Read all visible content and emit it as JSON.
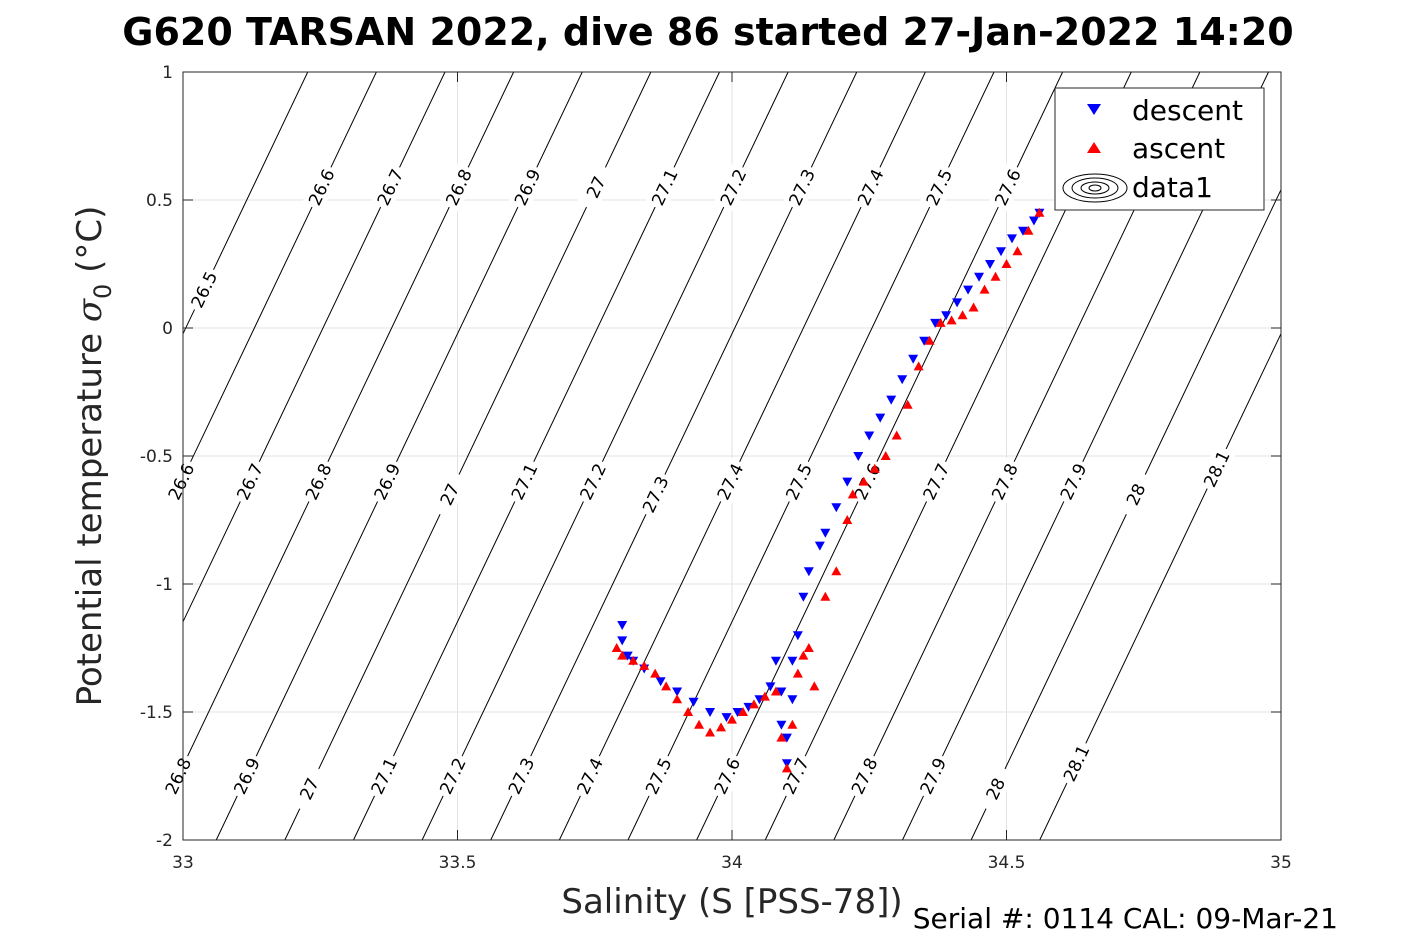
{
  "chart_data": {
    "type": "scatter",
    "title": "G620 TARSAN 2022, dive 86 started 27-Jan-2022 14:20",
    "xlabel": "Salinity (S [PSS-78])",
    "ylabel_prefix": "Potential temperature ",
    "ylabel_sigma": "σ",
    "ylabel_sub": "0",
    "ylabel_suffix": " (°C)",
    "footer": "Serial #: 0114  CAL: 09-Mar-21",
    "xlim": [
      33,
      35
    ],
    "ylim": [
      -2,
      1
    ],
    "xticks": [
      33,
      33.5,
      34,
      34.5,
      35
    ],
    "xtick_labels": [
      "33",
      "33.5",
      "34",
      "34.5",
      "35"
    ],
    "yticks": [
      -2,
      -1.5,
      -1,
      -0.5,
      0,
      0.5,
      1
    ],
    "ytick_labels": [
      "-2",
      "-1.5",
      "-1",
      "-0.5",
      "0",
      "0.5",
      "1"
    ],
    "grid": true,
    "legend_position": "top-right",
    "legend": [
      {
        "label": "descent",
        "color": "#0000ff",
        "marker": "triangle-down"
      },
      {
        "label": "ascent",
        "color": "#ff0000",
        "marker": "triangle-up"
      },
      {
        "label": "data1",
        "color": "#000000",
        "marker": "contour"
      }
    ],
    "contours": {
      "levels": [
        26.5,
        26.6,
        26.7,
        26.8,
        26.9,
        27,
        27.1,
        27.2,
        27.3,
        27.4,
        27.5,
        27.6,
        27.7,
        27.8,
        27.9,
        28,
        28.1
      ],
      "level_labels": [
        "26.5",
        "26.6",
        "26.7",
        "26.8",
        "26.9",
        "27",
        "27.1",
        "27.2",
        "27.3",
        "27.4",
        "27.5",
        "27.6",
        "27.7",
        "27.8",
        "27.9",
        "28",
        "28.1"
      ],
      "slope_dT_dS": 4.5,
      "salinity_at_zero": [
        33.005,
        33.13,
        33.255,
        33.38,
        33.505,
        33.63,
        33.755,
        33.88,
        34.005,
        34.13,
        34.255,
        34.38,
        34.505,
        34.63,
        34.755,
        34.88,
        35.005
      ],
      "labels": [
        {
          "level": "26.5",
          "T": 0.15
        },
        {
          "level": "26.6",
          "T": 0.55
        },
        {
          "level": "26.7",
          "T": 0.55
        },
        {
          "level": "26.8",
          "T": 0.55
        },
        {
          "level": "26.9",
          "T": 0.55
        },
        {
          "level": "27",
          "T": 0.55
        },
        {
          "level": "27.1",
          "T": 0.55
        },
        {
          "level": "27.2",
          "T": 0.55
        },
        {
          "level": "27.3",
          "T": 0.55
        },
        {
          "level": "27.4",
          "T": 0.55
        },
        {
          "level": "27.5",
          "T": 0.55
        },
        {
          "level": "27.6",
          "T": 0.55
        },
        {
          "level": "27.7",
          "T": 0.55
        },
        {
          "level": "26.6",
          "T": -0.6
        },
        {
          "level": "26.7",
          "T": -0.6
        },
        {
          "level": "26.8",
          "T": -0.6
        },
        {
          "level": "26.9",
          "T": -0.6
        },
        {
          "level": "27",
          "T": -0.65
        },
        {
          "level": "27.1",
          "T": -0.6
        },
        {
          "level": "27.2",
          "T": -0.6
        },
        {
          "level": "27.3",
          "T": -0.65
        },
        {
          "level": "27.4",
          "T": -0.6
        },
        {
          "level": "27.5",
          "T": -0.6
        },
        {
          "level": "27.6",
          "T": -0.6
        },
        {
          "level": "27.7",
          "T": -0.6
        },
        {
          "level": "27.8",
          "T": -0.6
        },
        {
          "level": "27.9",
          "T": -0.6
        },
        {
          "level": "28",
          "T": -0.65
        },
        {
          "level": "28.1",
          "T": -0.55
        },
        {
          "level": "26.6",
          "T": -1.75
        },
        {
          "level": "26.7",
          "T": -1.75
        },
        {
          "level": "26.8",
          "T": -1.75
        },
        {
          "level": "26.9",
          "T": -1.75
        },
        {
          "level": "27",
          "T": -1.8
        },
        {
          "level": "27.1",
          "T": -1.75
        },
        {
          "level": "27.2",
          "T": -1.75
        },
        {
          "level": "27.3",
          "T": -1.75
        },
        {
          "level": "27.4",
          "T": -1.75
        },
        {
          "level": "27.5",
          "T": -1.75
        },
        {
          "level": "27.6",
          "T": -1.75
        },
        {
          "level": "27.7",
          "T": -1.75
        },
        {
          "level": "27.8",
          "T": -1.75
        },
        {
          "level": "27.9",
          "T": -1.75
        },
        {
          "level": "28",
          "T": -1.8
        },
        {
          "level": "28.1",
          "T": -1.7
        }
      ]
    },
    "series": [
      {
        "name": "descent",
        "color": "#0000ff",
        "marker": "triangle-down",
        "x": [
          33.8,
          33.8,
          33.81,
          33.82,
          33.84,
          33.87,
          33.9,
          33.93,
          33.96,
          33.99,
          34.01,
          34.03,
          34.05,
          34.07,
          34.08,
          34.09,
          34.09,
          34.1,
          34.1,
          34.11,
          34.11,
          34.12,
          34.13,
          34.14,
          34.16,
          34.17,
          34.19,
          34.21,
          34.23,
          34.25,
          34.27,
          34.29,
          34.31,
          34.33,
          34.35,
          34.37,
          34.39,
          34.41,
          34.43,
          34.45,
          34.47,
          34.49,
          34.51,
          34.53,
          34.55,
          34.56
        ],
        "y": [
          -1.16,
          -1.22,
          -1.28,
          -1.3,
          -1.33,
          -1.38,
          -1.42,
          -1.46,
          -1.5,
          -1.52,
          -1.5,
          -1.48,
          -1.45,
          -1.4,
          -1.3,
          -1.42,
          -1.55,
          -1.6,
          -1.7,
          -1.45,
          -1.3,
          -1.2,
          -1.05,
          -0.95,
          -0.85,
          -0.8,
          -0.7,
          -0.6,
          -0.5,
          -0.42,
          -0.35,
          -0.28,
          -0.2,
          -0.12,
          -0.05,
          0.02,
          0.05,
          0.1,
          0.15,
          0.2,
          0.25,
          0.3,
          0.35,
          0.38,
          0.42,
          0.45
        ]
      },
      {
        "name": "ascent",
        "color": "#ff0000",
        "marker": "triangle-up",
        "x": [
          33.79,
          33.8,
          33.82,
          33.84,
          33.86,
          33.88,
          33.9,
          33.92,
          33.94,
          33.96,
          33.98,
          34,
          34.02,
          34.04,
          34.06,
          34.08,
          34.09,
          34.1,
          34.11,
          34.12,
          34.13,
          34.14,
          34.15,
          34.17,
          34.19,
          34.21,
          34.22,
          34.24,
          34.26,
          34.28,
          34.3,
          34.32,
          34.34,
          34.36,
          34.38,
          34.4,
          34.42,
          34.44,
          34.46,
          34.48,
          34.5,
          34.52,
          34.54,
          34.56
        ],
        "y": [
          -1.25,
          -1.28,
          -1.3,
          -1.32,
          -1.35,
          -1.4,
          -1.45,
          -1.5,
          -1.55,
          -1.58,
          -1.56,
          -1.53,
          -1.5,
          -1.47,
          -1.44,
          -1.42,
          -1.6,
          -1.72,
          -1.55,
          -1.35,
          -1.28,
          -1.25,
          -1.4,
          -1.05,
          -0.95,
          -0.75,
          -0.65,
          -0.6,
          -0.55,
          -0.5,
          -0.42,
          -0.3,
          -0.15,
          -0.05,
          0.02,
          0.03,
          0.05,
          0.08,
          0.15,
          0.2,
          0.25,
          0.3,
          0.38,
          0.45
        ]
      }
    ]
  }
}
